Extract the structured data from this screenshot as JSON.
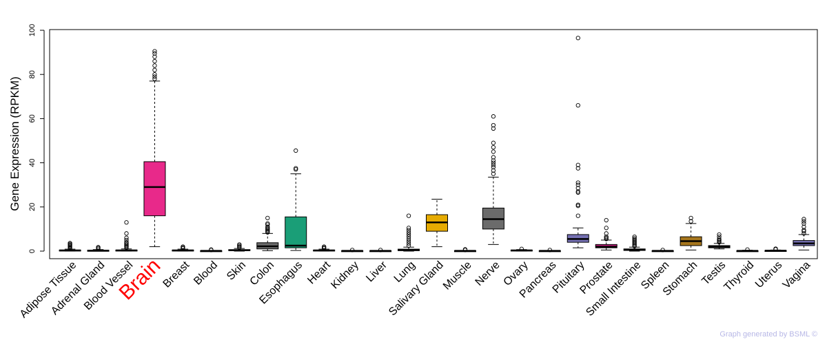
{
  "credit": "Graph generated by BSML ©",
  "colors": {
    "highlight_label": "#ff0000",
    "default_label": "#000000"
  },
  "chart_data": {
    "type": "box",
    "ylabel": "Gene Expression (RPKM)",
    "ylim": [
      0,
      100
    ],
    "yticks": [
      0,
      20,
      40,
      60,
      80,
      100
    ],
    "highlight": "Brain",
    "categories": [
      {
        "name": "Adipose Tissue",
        "color": "#ffffff",
        "min": 0.0,
        "q1": 0.1,
        "median": 0.3,
        "q3": 0.5,
        "max": 0.9,
        "outliers": [
          1.2,
          1.6,
          2.0,
          2.4,
          2.8,
          3.2,
          3.6
        ]
      },
      {
        "name": "Adrenal Gland",
        "color": "#ffffff",
        "min": 0.0,
        "q1": 0.1,
        "median": 0.2,
        "q3": 0.4,
        "max": 0.7,
        "outliers": [
          1.0,
          1.4,
          1.8
        ]
      },
      {
        "name": "Blood Vessel",
        "color": "#ffffff",
        "min": 0.0,
        "q1": 0.1,
        "median": 0.3,
        "q3": 0.5,
        "max": 1.0,
        "outliers": [
          1.5,
          2.0,
          2.5,
          3.0,
          3.5,
          4.0,
          5.0,
          6.0,
          8.0,
          13.0
        ]
      },
      {
        "name": "Brain",
        "color": "#e8298a",
        "min": 2.0,
        "q1": 16.0,
        "median": 29.0,
        "q3": 40.5,
        "max": 77.0,
        "outliers": [
          78,
          79,
          80,
          82,
          84,
          86,
          88,
          89.5,
          90.5
        ]
      },
      {
        "name": "Breast",
        "color": "#ffffff",
        "min": 0.0,
        "q1": 0.1,
        "median": 0.3,
        "q3": 0.5,
        "max": 0.9,
        "outliers": [
          1.2,
          1.6,
          2.0
        ]
      },
      {
        "name": "Blood",
        "color": "#ffffff",
        "min": 0.0,
        "q1": 0.0,
        "median": 0.1,
        "q3": 0.2,
        "max": 0.3,
        "outliers": [
          0.5,
          0.7
        ]
      },
      {
        "name": "Skin",
        "color": "#ffffff",
        "min": 0.0,
        "q1": 0.2,
        "median": 0.4,
        "q3": 0.7,
        "max": 1.2,
        "outliers": [
          1.6,
          2.0,
          2.5,
          3.0
        ]
      },
      {
        "name": "Colon",
        "color": "#6b6b6b",
        "min": 0.2,
        "q1": 1.0,
        "median": 2.2,
        "q3": 3.8,
        "max": 8.0,
        "outliers": [
          8.5,
          9.0,
          9.5,
          10.0,
          10.5,
          11.0,
          12.0,
          12.5,
          15.0
        ]
      },
      {
        "name": "Esophagus",
        "color": "#1a9e77",
        "min": 0.3,
        "q1": 1.5,
        "median": 2.5,
        "q3": 15.5,
        "max": 35.0,
        "outliers": [
          37.0,
          37.5,
          45.5
        ]
      },
      {
        "name": "Heart",
        "color": "#ffffff",
        "min": 0.0,
        "q1": 0.1,
        "median": 0.3,
        "q3": 0.5,
        "max": 0.9,
        "outliers": [
          1.2,
          1.6,
          2.0
        ]
      },
      {
        "name": "Kidney",
        "color": "#ffffff",
        "min": 0.0,
        "q1": 0.0,
        "median": 0.1,
        "q3": 0.2,
        "max": 0.3,
        "outliers": [
          0.5
        ]
      },
      {
        "name": "Liver",
        "color": "#ffffff",
        "min": 0.0,
        "q1": 0.0,
        "median": 0.1,
        "q3": 0.2,
        "max": 0.3,
        "outliers": [
          0.5
        ]
      },
      {
        "name": "Lung",
        "color": "#ffffff",
        "min": 0.0,
        "q1": 0.2,
        "median": 0.5,
        "q3": 0.9,
        "max": 1.8,
        "outliers": [
          2.5,
          3.5,
          4.5,
          5.5,
          6.5,
          7.5,
          8.5,
          9.5,
          10.5,
          16.0
        ]
      },
      {
        "name": "Salivary Gland",
        "color": "#e6ab02",
        "min": 2.0,
        "q1": 9.0,
        "median": 13.0,
        "q3": 16.5,
        "max": 23.5,
        "outliers": []
      },
      {
        "name": "Muscle",
        "color": "#ffffff",
        "min": 0.0,
        "q1": 0.0,
        "median": 0.1,
        "q3": 0.2,
        "max": 0.3,
        "outliers": [
          0.5,
          0.8
        ]
      },
      {
        "name": "Nerve",
        "color": "#6b6b6b",
        "min": 3.0,
        "q1": 10.0,
        "median": 14.5,
        "q3": 19.5,
        "max": 33.5,
        "outliers": [
          35.0,
          36.5,
          38.0,
          39.0,
          40.0,
          41.0,
          42.5,
          45.0,
          47.0,
          49.0,
          55.5,
          57.0,
          61.0
        ]
      },
      {
        "name": "Ovary",
        "color": "#ffffff",
        "min": 0.0,
        "q1": 0.1,
        "median": 0.3,
        "q3": 0.5,
        "max": 0.7,
        "outliers": [
          1.0
        ]
      },
      {
        "name": "Pancreas",
        "color": "#ffffff",
        "min": 0.0,
        "q1": 0.0,
        "median": 0.1,
        "q3": 0.2,
        "max": 0.3,
        "outliers": [
          0.5
        ]
      },
      {
        "name": "Pituitary",
        "color": "#7570b3",
        "min": 1.5,
        "q1": 4.0,
        "median": 5.5,
        "q3": 7.5,
        "max": 10.5,
        "outliers": [
          16.0,
          20.5,
          21.0,
          26.5,
          27.0,
          28.5,
          30.0,
          31.0,
          37.5,
          39.0,
          66.0,
          96.5
        ]
      },
      {
        "name": "Prostate",
        "color": "#c51b7d",
        "min": 0.5,
        "q1": 1.5,
        "median": 2.0,
        "q3": 3.0,
        "max": 5.0,
        "outliers": [
          5.5,
          6.0,
          6.5,
          8.0,
          10.5,
          14.0
        ]
      },
      {
        "name": "Small Intestine",
        "color": "#ffffff",
        "min": 0.0,
        "q1": 0.3,
        "median": 0.6,
        "q3": 1.0,
        "max": 1.8,
        "outliers": [
          2.2,
          2.8,
          3.4,
          4.0,
          4.6,
          5.2,
          5.8,
          6.5
        ]
      },
      {
        "name": "Spleen",
        "color": "#ffffff",
        "min": 0.0,
        "q1": 0.0,
        "median": 0.1,
        "q3": 0.2,
        "max": 0.3,
        "outliers": [
          0.5
        ]
      },
      {
        "name": "Stomach",
        "color": "#a6761d",
        "min": 0.5,
        "q1": 2.5,
        "median": 4.5,
        "q3": 6.5,
        "max": 12.5,
        "outliers": [
          13.5,
          15.0
        ]
      },
      {
        "name": "Testis",
        "color": "#6b6b6b",
        "min": 1.0,
        "q1": 1.5,
        "median": 2.0,
        "q3": 2.5,
        "max": 3.5,
        "outliers": [
          4.0,
          4.5,
          5.0,
          5.5,
          6.5,
          7.5
        ]
      },
      {
        "name": "Thyroid",
        "color": "#ffffff",
        "min": 0.0,
        "q1": 0.0,
        "median": 0.1,
        "q3": 0.2,
        "max": 0.4,
        "outliers": [
          0.7
        ]
      },
      {
        "name": "Uterus",
        "color": "#ffffff",
        "min": 0.0,
        "q1": 0.1,
        "median": 0.2,
        "q3": 0.3,
        "max": 0.5,
        "outliers": [
          0.8,
          1.1
        ]
      },
      {
        "name": "Vagina",
        "color": "#7570b3",
        "min": 0.5,
        "q1": 2.5,
        "median": 3.5,
        "q3": 4.8,
        "max": 7.5,
        "outliers": [
          8.0,
          9.0,
          9.5,
          11.0,
          12.5,
          13.5,
          14.5
        ]
      }
    ]
  }
}
